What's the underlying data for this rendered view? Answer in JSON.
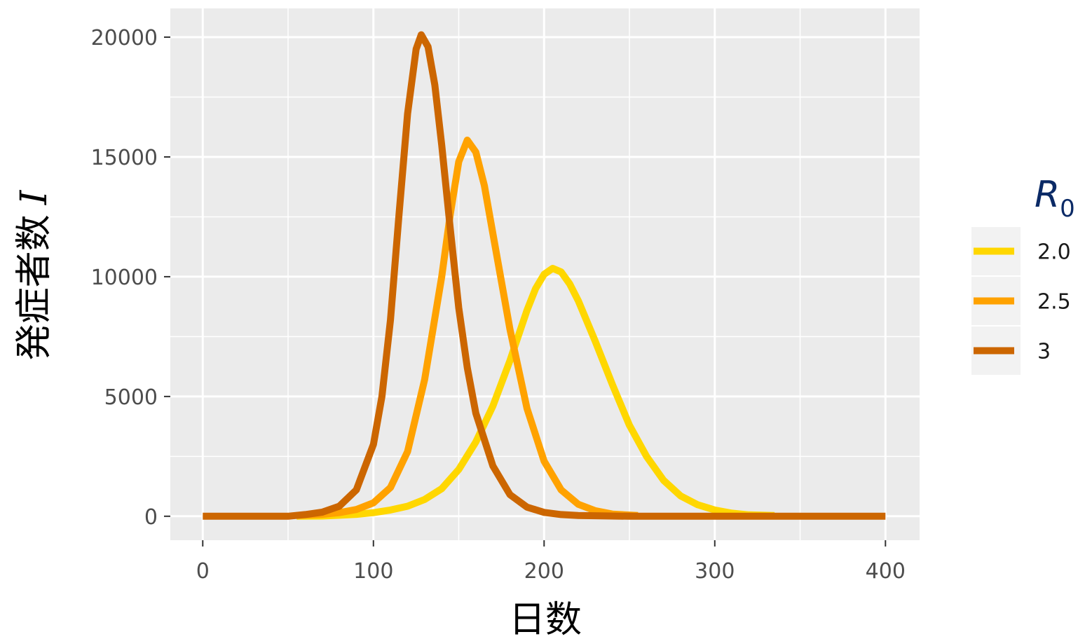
{
  "chart_data": {
    "type": "line",
    "xlabel": "日数",
    "ylabel_text": "発症者数",
    "ylabel_symbol": "I",
    "xlim": [
      -19,
      420
    ],
    "ylim": [
      -1000,
      21200
    ],
    "x_ticks": [
      0,
      100,
      200,
      300,
      400
    ],
    "x_tick_labels": [
      "0",
      "100",
      "200",
      "300",
      "400"
    ],
    "y_ticks": [
      0,
      5000,
      10000,
      15000,
      20000
    ],
    "y_tick_labels": [
      "0",
      "5000",
      "10000",
      "15000",
      "20000"
    ],
    "grid": true,
    "legend_position": "right",
    "legend": {
      "title_symbol": "R",
      "title_subscript": "0",
      "entries": [
        "2.0",
        "2.5",
        "3"
      ]
    },
    "series": [
      {
        "name": "2.0",
        "color": "#FFD700",
        "x": [
          55,
          70,
          80,
          90,
          100,
          110,
          120,
          130,
          140,
          150,
          160,
          170,
          180,
          190,
          195,
          200,
          205,
          210,
          215,
          220,
          230,
          240,
          250,
          260,
          270,
          280,
          290,
          300,
          310,
          320,
          335
        ],
        "y": [
          0,
          10,
          40,
          80,
          150,
          260,
          420,
          700,
          1150,
          1950,
          3100,
          4600,
          6500,
          8600,
          9500,
          10100,
          10350,
          10200,
          9700,
          9000,
          7300,
          5500,
          3800,
          2500,
          1500,
          850,
          480,
          260,
          130,
          60,
          30
        ]
      },
      {
        "name": "2.5",
        "color": "#FFA200",
        "x": [
          55,
          70,
          80,
          90,
          100,
          110,
          120,
          130,
          140,
          145,
          150,
          155,
          160,
          165,
          170,
          180,
          190,
          200,
          210,
          220,
          230,
          240,
          255
        ],
        "y": [
          30,
          80,
          150,
          280,
          560,
          1200,
          2700,
          5700,
          10000,
          12600,
          14800,
          15700,
          15200,
          13800,
          11800,
          7800,
          4500,
          2300,
          1100,
          500,
          230,
          90,
          30
        ]
      },
      {
        "name": "3",
        "color": "#CC6600",
        "x": [
          0,
          50,
          60,
          70,
          80,
          90,
          100,
          105,
          110,
          115,
          120,
          125,
          128,
          132,
          136,
          140,
          145,
          150,
          155,
          160,
          170,
          180,
          190,
          200,
          210,
          220,
          250,
          300,
          350,
          400
        ],
        "y": [
          0,
          0,
          70,
          170,
          420,
          1100,
          3000,
          5000,
          8200,
          12600,
          16800,
          19500,
          20100,
          19600,
          18000,
          15500,
          12000,
          8700,
          6200,
          4300,
          2100,
          900,
          380,
          160,
          70,
          30,
          0,
          0,
          0,
          0
        ]
      }
    ]
  }
}
